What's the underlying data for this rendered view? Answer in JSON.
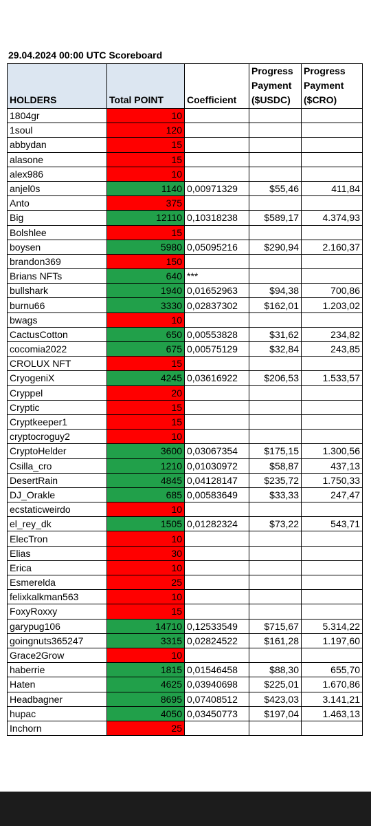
{
  "header": {
    "title": "29.04.2024 00:00 UTC Scoreboard"
  },
  "table": {
    "columns": [
      "HOLDERS",
      "Total POINT",
      "Coefficient",
      "Progress Payment ($USDC)",
      "Progress Payment ($CRO)"
    ],
    "rows": [
      {
        "holder": "1804gr",
        "points": 10,
        "color": "#ff0000"
      },
      {
        "holder": "1soul",
        "points": 120,
        "color": "#ff0000"
      },
      {
        "holder": "abbydan",
        "points": 15,
        "color": "#ff0000"
      },
      {
        "holder": "alasone",
        "points": 15,
        "color": "#ff0000"
      },
      {
        "holder": "alex986",
        "points": 10,
        "color": "#ff0000"
      },
      {
        "holder": "anjel0s",
        "points": 1140,
        "color": "#21a04a",
        "coefficient": "0,00971329",
        "usdc": "$55,46",
        "cro": "411,84"
      },
      {
        "holder": "Anto",
        "points": 375,
        "color": "#ff0000"
      },
      {
        "holder": "Big",
        "points": 12110,
        "color": "#21a04a",
        "coefficient": "0,10318238",
        "usdc": "$589,17",
        "cro": "4.374,93"
      },
      {
        "holder": "Bolshlee",
        "points": 15,
        "color": "#ff0000"
      },
      {
        "holder": "boysen",
        "points": 5980,
        "color": "#21a04a",
        "coefficient": "0,05095216",
        "usdc": "$290,94",
        "cro": "2.160,37"
      },
      {
        "holder": "brandon369",
        "points": 150,
        "color": "#ff0000"
      },
      {
        "holder": "Brians NFTs",
        "points": 640,
        "color": "#21a04a",
        "coefficient": "***"
      },
      {
        "holder": "bullshark",
        "points": 1940,
        "color": "#21a04a",
        "coefficient": "0,01652963",
        "usdc": "$94,38",
        "cro": "700,86"
      },
      {
        "holder": "burnu66",
        "points": 3330,
        "color": "#21a04a",
        "coefficient": "0,02837302",
        "usdc": "$162,01",
        "cro": "1.203,02"
      },
      {
        "holder": "bwags",
        "points": 10,
        "color": "#ff0000"
      },
      {
        "holder": "CactusCotton",
        "points": 650,
        "color": "#21a04a",
        "coefficient": "0,00553828",
        "usdc": "$31,62",
        "cro": "234,82"
      },
      {
        "holder": "cocomia2022",
        "points": 675,
        "color": "#21a04a",
        "coefficient": "0,00575129",
        "usdc": "$32,84",
        "cro": "243,85"
      },
      {
        "holder": "CROLUX NFT",
        "points": 15,
        "color": "#ff0000"
      },
      {
        "holder": "CryogeniX",
        "points": 4245,
        "color": "#21a04a",
        "coefficient": "0,03616922",
        "usdc": "$206,53",
        "cro": "1.533,57"
      },
      {
        "holder": "Cryppel",
        "points": 20,
        "color": "#ff0000"
      },
      {
        "holder": "Cryptic",
        "points": 15,
        "color": "#ff0000"
      },
      {
        "holder": "Cryptkeeper1",
        "points": 15,
        "color": "#ff0000"
      },
      {
        "holder": "cryptocroguy2",
        "points": 10,
        "color": "#ff0000"
      },
      {
        "holder": "CryptoHelder",
        "points": 3600,
        "color": "#21a04a",
        "coefficient": "0,03067354",
        "usdc": "$175,15",
        "cro": "1.300,56"
      },
      {
        "holder": "Csilla_cro",
        "points": 1210,
        "color": "#21a04a",
        "coefficient": "0,01030972",
        "usdc": "$58,87",
        "cro": "437,13"
      },
      {
        "holder": "DesertRain",
        "points": 4845,
        "color": "#21a04a",
        "coefficient": "0,04128147",
        "usdc": "$235,72",
        "cro": "1.750,33"
      },
      {
        "holder": "DJ_Orakle",
        "points": 685,
        "color": "#21a04a",
        "coefficient": "0,00583649",
        "usdc": "$33,33",
        "cro": "247,47"
      },
      {
        "holder": "ecstaticweirdo",
        "points": 10,
        "color": "#ff0000"
      },
      {
        "holder": "el_rey_dk",
        "points": 1505,
        "color": "#21a04a",
        "coefficient": "0,01282324",
        "usdc": "$73,22",
        "cro": "543,71"
      },
      {
        "holder": "ElecTron",
        "points": 10,
        "color": "#ff0000"
      },
      {
        "holder": "Elias",
        "points": 30,
        "color": "#ff0000"
      },
      {
        "holder": "Erica",
        "points": 10,
        "color": "#ff0000"
      },
      {
        "holder": "Esmerelda",
        "points": 25,
        "color": "#ff0000"
      },
      {
        "holder": "felixkalkman563",
        "points": 10,
        "color": "#ff0000"
      },
      {
        "holder": "FoxyRoxxy",
        "points": 15,
        "color": "#ff0000"
      },
      {
        "holder": "garypug106",
        "points": 14710,
        "color": "#21a04a",
        "coefficient": "0,12533549",
        "usdc": "$715,67",
        "cro": "5.314,22"
      },
      {
        "holder": "goingnuts365247",
        "points": 3315,
        "color": "#21a04a",
        "coefficient": "0,02824522",
        "usdc": "$161,28",
        "cro": "1.197,60"
      },
      {
        "holder": "Grace2Grow",
        "points": 10,
        "color": "#ff0000"
      },
      {
        "holder": "haberrie",
        "points": 1815,
        "color": "#21a04a",
        "coefficient": "0,01546458",
        "usdc": "$88,30",
        "cro": "655,70"
      },
      {
        "holder": "Haten",
        "points": 4625,
        "color": "#21a04a",
        "coefficient": "0,03940698",
        "usdc": "$225,01",
        "cro": "1.670,86"
      },
      {
        "holder": "Headbagner",
        "points": 8695,
        "color": "#21a04a",
        "coefficient": "0,07408512",
        "usdc": "$423,03",
        "cro": "3.141,21"
      },
      {
        "holder": "hupac",
        "points": 4050,
        "color": "#21a04a",
        "coefficient": "0,03450773",
        "usdc": "$197,04",
        "cro": "1.463,13"
      },
      {
        "holder": "Inchorn",
        "points": 25,
        "color": "#ff0000"
      }
    ]
  }
}
